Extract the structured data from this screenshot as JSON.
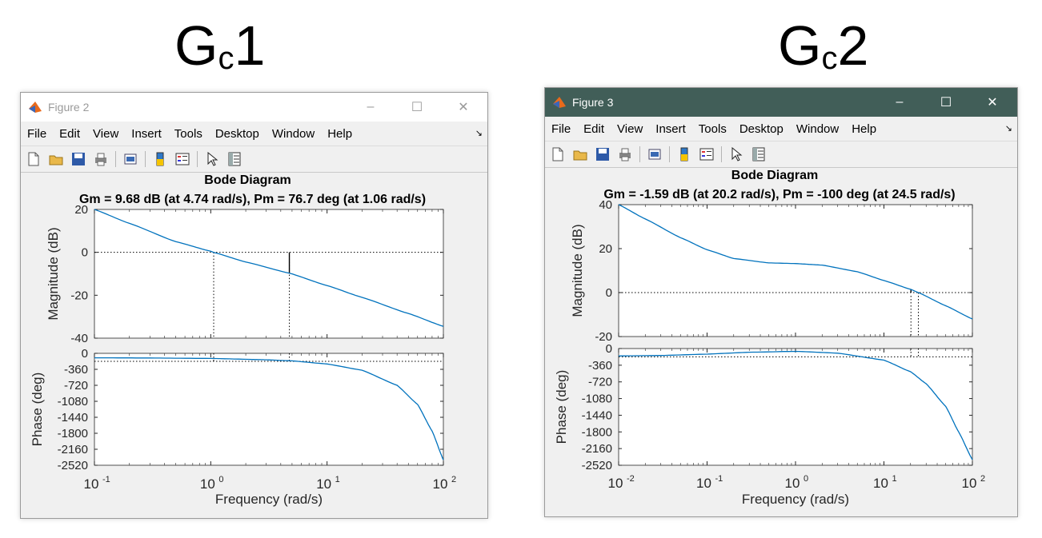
{
  "captions": {
    "left_main": "G",
    "left_sub": "c",
    "left_num": "1",
    "right_main": "G",
    "right_sub": "c",
    "right_num": "2"
  },
  "menu": [
    "File",
    "Edit",
    "View",
    "Insert",
    "Tools",
    "Desktop",
    "Window",
    "Help"
  ],
  "toolbar_icons": [
    "new-file-icon",
    "open-folder-icon",
    "save-icon",
    "print-icon",
    "print-preview-icon",
    "colorbar-icon",
    "legend-icon",
    "pointer-icon",
    "property-inspector-icon"
  ],
  "colors": {
    "curve": "#0072bd",
    "active_titlebar": "#415e58"
  },
  "figures": [
    {
      "window_title": "Figure 2",
      "active": false,
      "chart_data": {
        "type": "line",
        "title": "Bode Diagram",
        "subtitle": "Gm = 9.68 dB (at 4.74 rad/s),  Pm = 76.7 deg (at 1.06 rad/s)",
        "xlabel": "Frequency  (rad/s)",
        "x_scale": "log",
        "xlim": [
          0.1,
          100
        ],
        "x_ticks": [
          {
            "base": "10",
            "exp": "-1"
          },
          {
            "base": "10",
            "exp": "0"
          },
          {
            "base": "10",
            "exp": "1"
          },
          {
            "base": "10",
            "exp": "2"
          }
        ],
        "magnitude": {
          "ylabel": "Magnitude (dB)",
          "ylim": [
            -40,
            20
          ],
          "yticks": [
            "20",
            "0",
            "-20",
            "-40"
          ],
          "x": [
            0.1,
            0.2,
            0.5,
            1,
            1.06,
            2,
            4.74,
            10,
            20,
            50,
            100
          ],
          "y": [
            20,
            13.5,
            5,
            0.5,
            0,
            -4.5,
            -9.7,
            -15.5,
            -21,
            -28.5,
            -34.5
          ]
        },
        "phase": {
          "ylabel": "Phase (deg)",
          "ylim": [
            -2520,
            0
          ],
          "yticks": [
            "0",
            "-360",
            "-720",
            "-1080",
            "-1440",
            "-1800",
            "-2160",
            "-2520"
          ],
          "x": [
            0.1,
            0.3,
            1,
            3,
            5,
            10,
            20,
            40,
            60,
            80,
            100
          ],
          "y": [
            -100,
            -105,
            -115,
            -145,
            -170,
            -240,
            -380,
            -720,
            -1150,
            -1750,
            -2400
          ]
        },
        "margins": {
          "gm_db": 9.68,
          "gm_freq": 4.74,
          "pm_deg": 76.7,
          "pm_freq": 1.06
        }
      }
    },
    {
      "window_title": "Figure 3",
      "active": true,
      "chart_data": {
        "type": "line",
        "title": "Bode Diagram",
        "subtitle": "Gm = -1.59 dB (at 20.2 rad/s),  Pm = -100 deg (at 24.5 rad/s)",
        "xlabel": "Frequency  (rad/s)",
        "x_scale": "log",
        "xlim": [
          0.01,
          100
        ],
        "x_ticks": [
          {
            "base": "10",
            "exp": "-2"
          },
          {
            "base": "10",
            "exp": "-1"
          },
          {
            "base": "10",
            "exp": "0"
          },
          {
            "base": "10",
            "exp": "1"
          },
          {
            "base": "10",
            "exp": "2"
          }
        ],
        "magnitude": {
          "ylabel": "Magnitude (dB)",
          "ylim": [
            -20,
            40
          ],
          "yticks": [
            "40",
            "20",
            "0",
            "-20"
          ],
          "x": [
            0.01,
            0.02,
            0.05,
            0.1,
            0.2,
            0.5,
            1,
            2,
            5,
            10,
            20,
            24.5,
            50,
            100
          ],
          "y": [
            40,
            33.5,
            25,
            19.5,
            15.5,
            13.5,
            13.2,
            12.5,
            9.5,
            5.5,
            1.5,
            0,
            -6,
            -12
          ]
        },
        "phase": {
          "ylabel": "Phase (deg)",
          "ylim": [
            -2520,
            0
          ],
          "yticks": [
            "0",
            "-360",
            "-720",
            "-1080",
            "-1440",
            "-1800",
            "-2160",
            "-2520"
          ],
          "x": [
            0.01,
            0.03,
            0.1,
            0.3,
            1,
            3,
            10,
            20,
            30,
            50,
            70,
            100
          ],
          "y": [
            -160,
            -150,
            -120,
            -80,
            -60,
            -100,
            -250,
            -500,
            -760,
            -1250,
            -1800,
            -2400
          ]
        },
        "margins": {
          "gm_db": -1.59,
          "gm_freq": 20.2,
          "pm_deg": -100,
          "pm_freq": 24.5
        }
      }
    }
  ]
}
